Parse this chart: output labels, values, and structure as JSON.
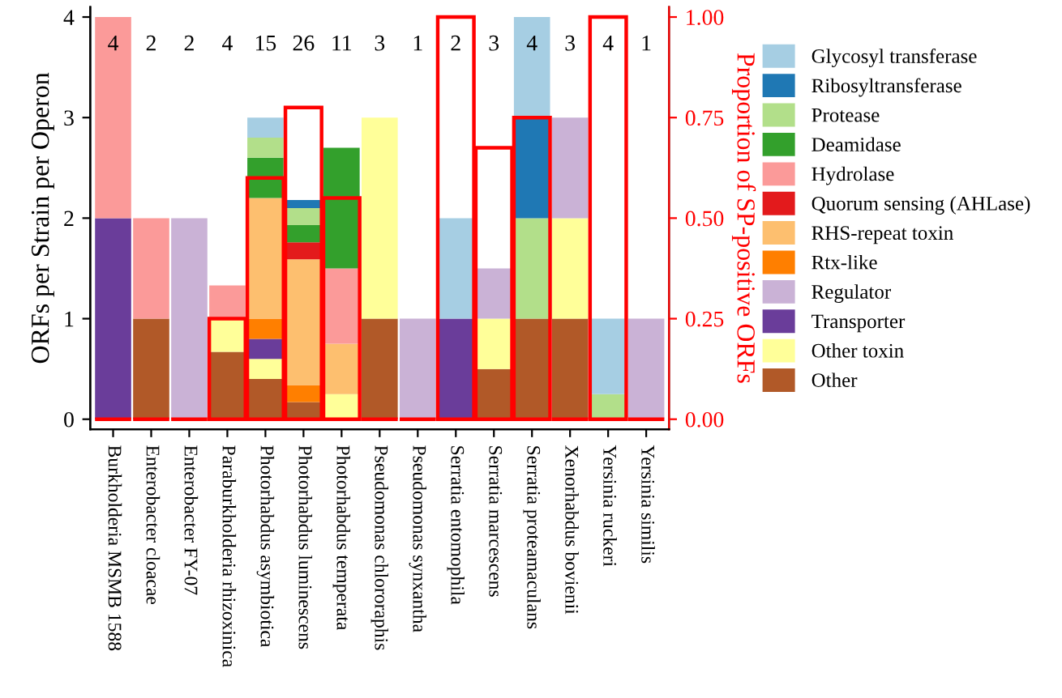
{
  "chart_data": {
    "type": "bar",
    "stacked": true,
    "ylabel": "ORFs per Strain per Operon",
    "y2label": "Proportion of SP-positive ORFs",
    "categories": [
      "Burkholderia MSMB 1588",
      "Enterobacter cloacae",
      "Enterobacter FY-07",
      "Paraburkholderia rhizoxinica",
      "Photorhabdus asymbiotica",
      "Photorhabdus luminescens",
      "Photorhabdus temperata",
      "Pseudomonas chlororaphis",
      "Pseudomonas synxantha",
      "Serratia entomophila",
      "Serratia marcescens",
      "Serratia proteamaculans",
      "Xenorhabdus bovienii",
      "Yersinia ruckeri",
      "Yersinia similis"
    ],
    "series": [
      {
        "name": "Other",
        "color": "#b15928",
        "values": [
          null,
          1,
          null,
          0.67,
          0.4,
          0.17,
          null,
          1,
          null,
          null,
          0.5,
          1,
          1,
          null,
          null
        ]
      },
      {
        "name": "Other toxin",
        "color": "#ffff99",
        "values": [
          null,
          null,
          null,
          0.33,
          0.2,
          null,
          0.25,
          2,
          null,
          null,
          0.5,
          null,
          1,
          null,
          null
        ]
      },
      {
        "name": "Transporter",
        "color": "#6a3d9a",
        "values": [
          2,
          null,
          null,
          null,
          0.2,
          null,
          null,
          null,
          null,
          1,
          null,
          null,
          null,
          null,
          null
        ]
      },
      {
        "name": "Regulator",
        "color": "#cab2d6",
        "values": [
          null,
          null,
          2,
          null,
          null,
          null,
          null,
          null,
          1,
          null,
          0.5,
          null,
          1,
          null,
          1
        ]
      },
      {
        "name": "Rtx-like",
        "color": "#ff7f00",
        "values": [
          null,
          null,
          null,
          null,
          0.2,
          0.17,
          null,
          null,
          null,
          null,
          null,
          null,
          null,
          null,
          null
        ]
      },
      {
        "name": "RHS-repeat toxin",
        "color": "#fdbf6f",
        "values": [
          null,
          null,
          null,
          null,
          1.2,
          1.25,
          0.5,
          null,
          null,
          null,
          null,
          null,
          null,
          null,
          null
        ]
      },
      {
        "name": "Quorum sensing (AHLase)",
        "color": "#e31a1c",
        "values": [
          null,
          null,
          null,
          null,
          null,
          0.17,
          null,
          null,
          null,
          null,
          null,
          null,
          null,
          null,
          null
        ]
      },
      {
        "name": "Hydrolase",
        "color": "#fb9a99",
        "values": [
          2,
          1,
          null,
          0.33,
          null,
          null,
          0.75,
          null,
          null,
          null,
          null,
          null,
          null,
          null,
          null
        ]
      },
      {
        "name": "Deamidase",
        "color": "#33a02c",
        "values": [
          null,
          null,
          null,
          null,
          0.4,
          0.17,
          1.2,
          null,
          null,
          null,
          null,
          null,
          null,
          null,
          null
        ]
      },
      {
        "name": "Protease",
        "color": "#b2df8a",
        "values": [
          null,
          null,
          null,
          null,
          0.2,
          0.17,
          null,
          null,
          null,
          null,
          null,
          1,
          null,
          0.25,
          null
        ]
      },
      {
        "name": "Ribosyltransferase",
        "color": "#1f78b4",
        "values": [
          null,
          null,
          null,
          null,
          null,
          0.08,
          null,
          null,
          null,
          null,
          null,
          1,
          null,
          null,
          null
        ]
      },
      {
        "name": "Glycosyl transferase",
        "color": "#a6cee3",
        "values": [
          null,
          null,
          null,
          null,
          0.2,
          null,
          null,
          null,
          null,
          1,
          null,
          1,
          null,
          0.75,
          null
        ]
      },
      {
        "axis": "y2",
        "color": "#ff0000",
        "values": [
          0,
          0,
          0,
          0.25,
          0.6,
          0.775,
          0.55,
          0,
          0,
          1.0,
          0.675,
          0.75,
          0,
          1.0,
          0
        ]
      }
    ],
    "ylim": [
      -0.1,
      4.1
    ],
    "yticks": [
      0,
      1,
      2,
      3,
      4
    ],
    "y2lim": [
      -0.025,
      1.025
    ],
    "y2ticks": [
      {
        "value": 0,
        "label": "0.00"
      },
      {
        "value": 0.25,
        "label": "0.25"
      },
      {
        "value": 0.5,
        "label": "0.50"
      },
      {
        "value": 0.75,
        "label": "0.75"
      },
      {
        "value": 1,
        "label": "1.00"
      }
    ],
    "annotations": [
      "4",
      "2",
      "2",
      "4",
      "15",
      "26",
      "11",
      "3",
      "1",
      "2",
      "3",
      "4",
      "3",
      "4",
      "1"
    ],
    "legend": "right",
    "grid": false
  }
}
